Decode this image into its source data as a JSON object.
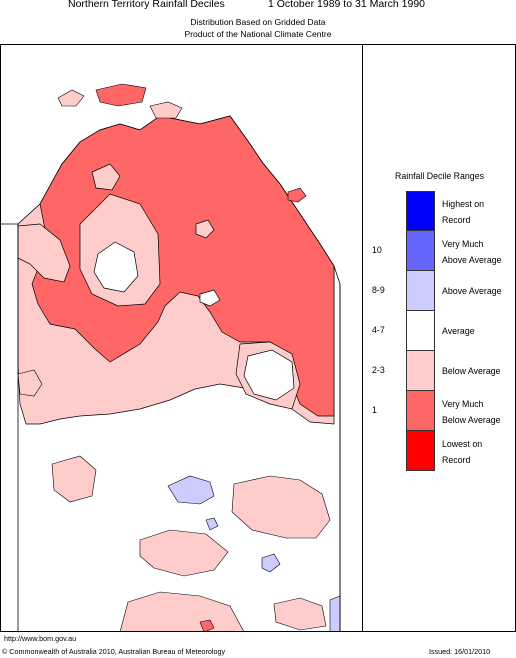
{
  "header": {
    "title": "Northern Territory Rainfall Deciles",
    "period": "1 October 1989 to 31 March 1990",
    "subtitle1": "Distribution Based on Gridded Data",
    "subtitle2": "Product of the National Climate Centre"
  },
  "legend": {
    "title": "Rainfall Decile Ranges",
    "items": [
      {
        "label1": "Highest on",
        "label2": "Record",
        "decile": "",
        "color": "#0000ff"
      },
      {
        "label1": "Very Much",
        "label2": "Above Average",
        "decile": "10",
        "color": "#6666ff"
      },
      {
        "label1": "Above Average",
        "label2": "",
        "decile": "8-9",
        "color": "#ccccff"
      },
      {
        "label1": "Average",
        "label2": "",
        "decile": "4-7",
        "color": "#ffffff"
      },
      {
        "label1": "Below Average",
        "label2": "",
        "decile": "2-3",
        "color": "#ffcccc"
      },
      {
        "label1": "Very Much",
        "label2": "Below Average",
        "decile": "1",
        "color": "#ff6666"
      },
      {
        "label1": "Lowest on",
        "label2": "Record",
        "decile": "",
        "color": "#ff0000"
      }
    ]
  },
  "footer": {
    "url": "http://www.bom.gov.au",
    "copyright": "© Commonwealth of Australia 2010, Australian Bureau of Meteorology",
    "issued": "Issued: 16/01/2010"
  }
}
